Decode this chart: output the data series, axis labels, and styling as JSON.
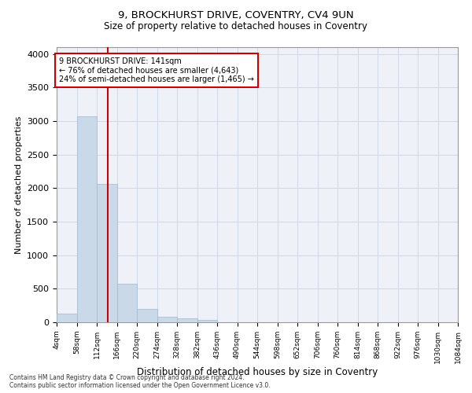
{
  "title1": "9, BROCKHURST DRIVE, COVENTRY, CV4 9UN",
  "title2": "Size of property relative to detached houses in Coventry",
  "xlabel": "Distribution of detached houses by size in Coventry",
  "ylabel": "Number of detached properties",
  "footer1": "Contains HM Land Registry data © Crown copyright and database right 2024.",
  "footer2": "Contains public sector information licensed under the Open Government Licence v3.0.",
  "annotation_line1": "9 BROCKHURST DRIVE: 141sqm",
  "annotation_line2": "← 76% of detached houses are smaller (4,643)",
  "annotation_line3": "24% of semi-detached houses are larger (1,465) →",
  "property_size": 141,
  "bin_edges": [
    4,
    58,
    112,
    166,
    220,
    274,
    328,
    382,
    436,
    490,
    544,
    598,
    652,
    706,
    760,
    814,
    868,
    922,
    976,
    1030,
    1084
  ],
  "bar_heights": [
    130,
    3070,
    2060,
    570,
    200,
    85,
    55,
    40,
    0,
    0,
    0,
    0,
    0,
    0,
    0,
    0,
    0,
    0,
    0,
    0
  ],
  "bar_color": "#c9d9e8",
  "bar_edge_color": "#a0b8d0",
  "vline_color": "#cc0000",
  "vline_x": 141,
  "ylim": [
    0,
    4100
  ],
  "yticks": [
    0,
    500,
    1000,
    1500,
    2000,
    2500,
    3000,
    3500,
    4000
  ],
  "grid_color": "#d0d8e8",
  "box_color": "#cc0000",
  "bg_color": "#eef2f8"
}
